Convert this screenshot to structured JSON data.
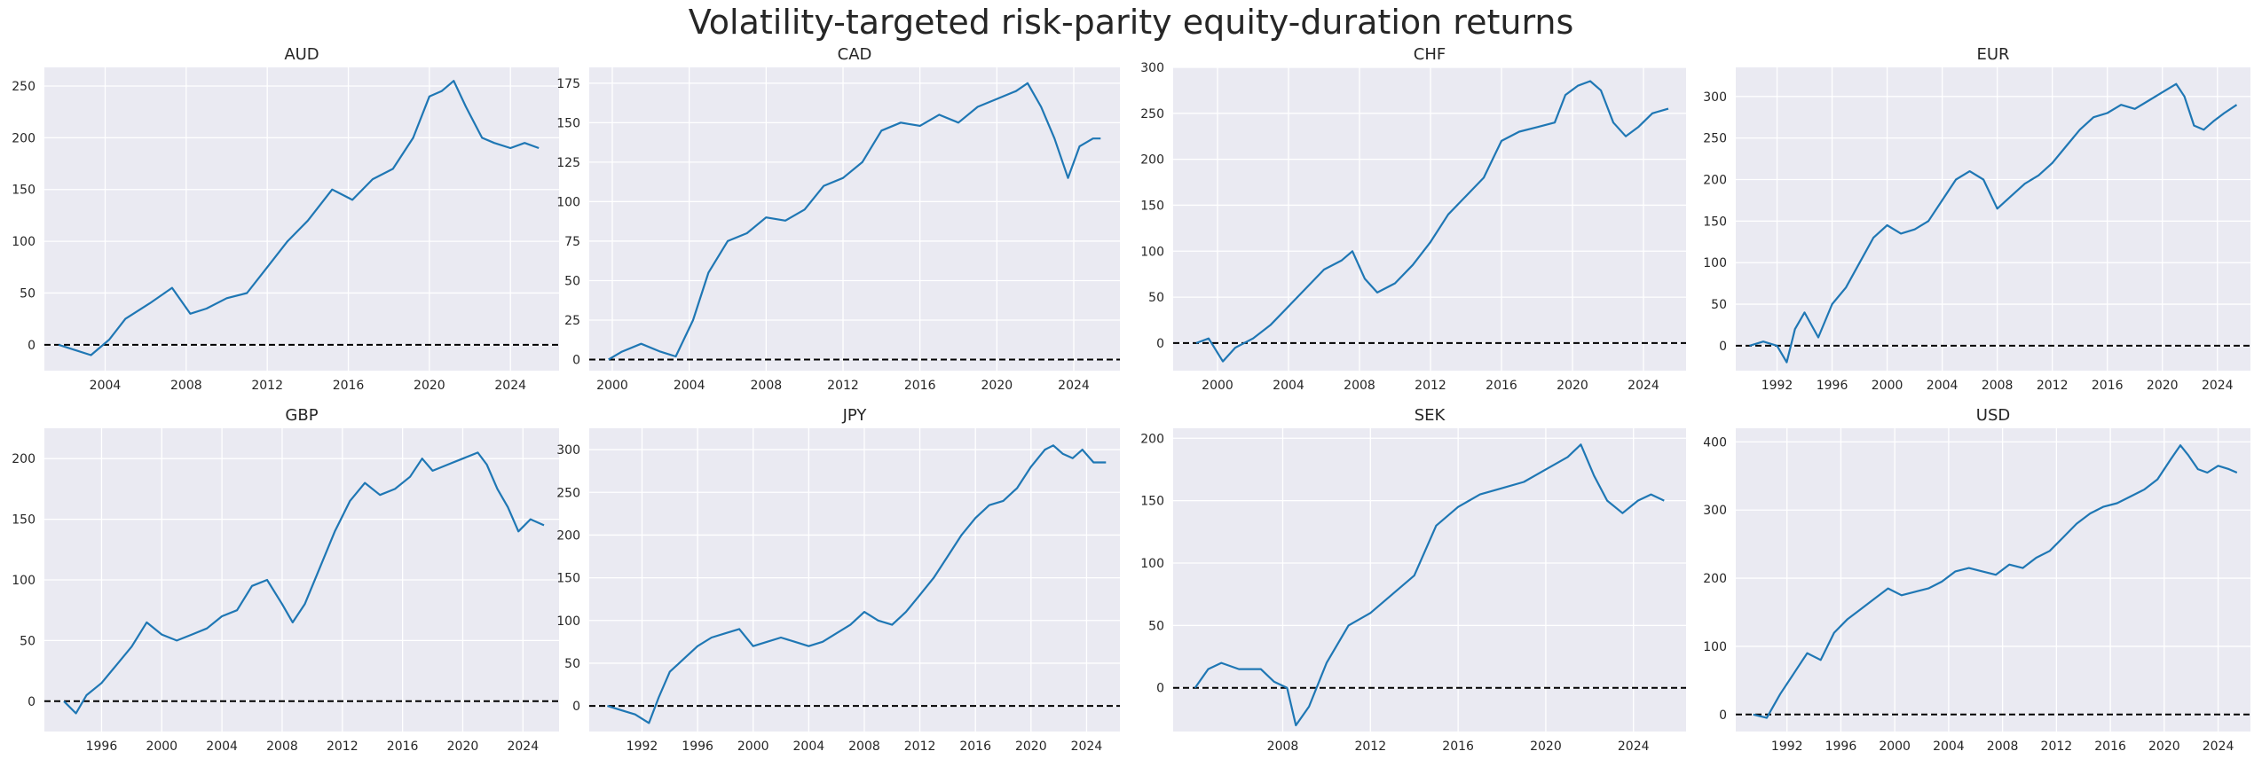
{
  "figure": {
    "title": "Volatility-targeted risk-parity equity-duration returns"
  },
  "style": {
    "background": "#eaeaf2",
    "grid": "#ffffff",
    "line": "#1f77b4",
    "zero_line": "#000000"
  },
  "chart_data": [
    {
      "type": "line",
      "title": "AUD",
      "xlim": [
        2001.0,
        2026.4
      ],
      "ylim": [
        -25,
        268
      ],
      "xticks": [
        2004,
        2008,
        2012,
        2016,
        2020,
        2024
      ],
      "yticks": [
        0,
        50,
        100,
        150,
        200,
        250
      ],
      "reference_line": 0,
      "series": [
        {
          "x": [
            2001.7,
            2002.5,
            2003.3,
            2004.2,
            2005.0,
            2006.2,
            2007.3,
            2008.2,
            2009.0,
            2010.0,
            2011.0,
            2012.0,
            2013.0,
            2014.0,
            2015.2,
            2016.2,
            2017.2,
            2018.2,
            2019.2,
            2020.0,
            2020.6,
            2021.2,
            2021.8,
            2022.6,
            2023.2,
            2024.0,
            2024.7,
            2025.4
          ],
          "y": [
            0,
            -5,
            -10,
            5,
            25,
            40,
            55,
            30,
            35,
            45,
            50,
            75,
            100,
            120,
            150,
            140,
            160,
            170,
            200,
            240,
            245,
            255,
            230,
            200,
            195,
            190,
            195,
            190
          ]
        }
      ]
    },
    {
      "type": "line",
      "title": "CAD",
      "xlim": [
        1998.8,
        2026.4
      ],
      "ylim": [
        -7,
        185
      ],
      "xticks": [
        2000,
        2004,
        2008,
        2012,
        2016,
        2020,
        2024
      ],
      "yticks": [
        0,
        25,
        50,
        75,
        100,
        125,
        150,
        175
      ],
      "reference_line": 0,
      "series": [
        {
          "x": [
            1999.8,
            2000.5,
            2001.5,
            2002.5,
            2003.3,
            2004.2,
            2005.0,
            2006.0,
            2007.0,
            2008.0,
            2009.0,
            2010.0,
            2011.0,
            2012.0,
            2013.0,
            2014.0,
            2015.0,
            2016.0,
            2017.0,
            2018.0,
            2019.0,
            2020.0,
            2021.0,
            2021.6,
            2022.3,
            2023.0,
            2023.7,
            2024.3,
            2025.0,
            2025.4
          ],
          "y": [
            0,
            5,
            10,
            5,
            2,
            25,
            55,
            75,
            80,
            90,
            88,
            95,
            110,
            115,
            125,
            145,
            150,
            148,
            155,
            150,
            160,
            165,
            170,
            175,
            160,
            140,
            115,
            135,
            140,
            140
          ]
        }
      ]
    },
    {
      "type": "line",
      "title": "CHF",
      "xlim": [
        1997.5,
        2026.4
      ],
      "ylim": [
        -30,
        300
      ],
      "xticks": [
        2000,
        2004,
        2008,
        2012,
        2016,
        2020,
        2024
      ],
      "yticks": [
        0,
        50,
        100,
        150,
        200,
        250,
        300
      ],
      "reference_line": 0,
      "series": [
        {
          "x": [
            1998.8,
            1999.5,
            2000.3,
            2001.0,
            2002.0,
            2003.0,
            2004.0,
            2005.0,
            2006.0,
            2007.0,
            2007.6,
            2008.3,
            2009.0,
            2010.0,
            2011.0,
            2012.0,
            2013.0,
            2014.0,
            2015.0,
            2016.0,
            2017.0,
            2018.0,
            2019.0,
            2019.6,
            2020.3,
            2021.0,
            2021.6,
            2022.3,
            2023.0,
            2023.7,
            2024.5,
            2025.4
          ],
          "y": [
            0,
            5,
            -20,
            -5,
            5,
            20,
            40,
            60,
            80,
            90,
            100,
            70,
            55,
            65,
            85,
            110,
            140,
            160,
            180,
            220,
            230,
            235,
            240,
            270,
            280,
            285,
            275,
            240,
            225,
            235,
            250,
            255
          ]
        }
      ]
    },
    {
      "type": "line",
      "title": "EUR",
      "xlim": [
        1989.0,
        2026.4
      ],
      "ylim": [
        -30,
        335
      ],
      "xticks": [
        1992,
        1996,
        2000,
        2004,
        2008,
        2012,
        2016,
        2020,
        2024
      ],
      "yticks": [
        0,
        50,
        100,
        150,
        200,
        250,
        300
      ],
      "reference_line": 0,
      "series": [
        {
          "x": [
            1990.0,
            1991.0,
            1992.0,
            1992.7,
            1993.3,
            1994.0,
            1995.0,
            1996.0,
            1997.0,
            1998.0,
            1999.0,
            2000.0,
            2001.0,
            2002.0,
            2003.0,
            2004.0,
            2005.0,
            2006.0,
            2007.0,
            2008.0,
            2009.0,
            2010.0,
            2011.0,
            2012.0,
            2013.0,
            2014.0,
            2015.0,
            2016.0,
            2017.0,
            2018.0,
            2019.0,
            2020.0,
            2021.0,
            2021.6,
            2022.3,
            2023.0,
            2023.7,
            2024.5,
            2025.4
          ],
          "y": [
            0,
            5,
            0,
            -20,
            20,
            40,
            10,
            50,
            70,
            100,
            130,
            145,
            135,
            140,
            150,
            175,
            200,
            210,
            200,
            165,
            180,
            195,
            205,
            220,
            240,
            260,
            275,
            280,
            290,
            285,
            295,
            305,
            315,
            300,
            265,
            260,
            270,
            280,
            290
          ]
        }
      ]
    },
    {
      "type": "line",
      "title": "GBP",
      "xlim": [
        1992.2,
        2026.4
      ],
      "ylim": [
        -25,
        225
      ],
      "xticks": [
        1996,
        2000,
        2004,
        2008,
        2012,
        2016,
        2020,
        2024
      ],
      "yticks": [
        0,
        50,
        100,
        150,
        200
      ],
      "reference_line": 0,
      "series": [
        {
          "x": [
            1993.5,
            1994.3,
            1995.0,
            1996.0,
            1997.0,
            1998.0,
            1999.0,
            2000.0,
            2001.0,
            2002.0,
            2003.0,
            2004.0,
            2005.0,
            2006.0,
            2007.0,
            2008.0,
            2008.7,
            2009.5,
            2010.5,
            2011.5,
            2012.5,
            2013.5,
            2014.5,
            2015.5,
            2016.5,
            2017.3,
            2018.0,
            2019.0,
            2020.0,
            2021.0,
            2021.6,
            2022.3,
            2023.0,
            2023.7,
            2024.5,
            2025.4
          ],
          "y": [
            0,
            -10,
            5,
            15,
            30,
            45,
            65,
            55,
            50,
            55,
            60,
            70,
            75,
            95,
            100,
            80,
            65,
            80,
            110,
            140,
            165,
            180,
            170,
            175,
            185,
            200,
            190,
            195,
            200,
            205,
            195,
            175,
            160,
            140,
            150,
            145
          ]
        }
      ]
    },
    {
      "type": "line",
      "title": "JPY",
      "xlim": [
        1988.2,
        2026.4
      ],
      "ylim": [
        -30,
        325
      ],
      "xticks": [
        1992,
        1996,
        2000,
        2004,
        2008,
        2012,
        2016,
        2020,
        2024
      ],
      "yticks": [
        0,
        50,
        100,
        150,
        200,
        250,
        300
      ],
      "reference_line": 0,
      "series": [
        {
          "x": [
            1989.5,
            1990.5,
            1991.5,
            1992.5,
            1993.2,
            1994.0,
            1995.0,
            1996.0,
            1997.0,
            1998.0,
            1999.0,
            2000.0,
            2001.0,
            2002.0,
            2003.0,
            2004.0,
            2005.0,
            2006.0,
            2007.0,
            2008.0,
            2009.0,
            2010.0,
            2011.0,
            2012.0,
            2013.0,
            2014.0,
            2015.0,
            2016.0,
            2017.0,
            2018.0,
            2019.0,
            2020.0,
            2021.0,
            2021.6,
            2022.3,
            2023.0,
            2023.7,
            2024.5,
            2025.4
          ],
          "y": [
            0,
            -5,
            -10,
            -20,
            10,
            40,
            55,
            70,
            80,
            85,
            90,
            70,
            75,
            80,
            75,
            70,
            75,
            85,
            95,
            110,
            100,
            95,
            110,
            130,
            150,
            175,
            200,
            220,
            235,
            240,
            255,
            280,
            300,
            305,
            295,
            290,
            300,
            285,
            285
          ]
        }
      ]
    },
    {
      "type": "line",
      "title": "SEK",
      "xlim": [
        2003.0,
        2026.4
      ],
      "ylim": [
        -35,
        208
      ],
      "xticks": [
        2008,
        2012,
        2016,
        2020,
        2024
      ],
      "yticks": [
        0,
        50,
        100,
        150,
        200
      ],
      "reference_line": 0,
      "series": [
        {
          "x": [
            2004.0,
            2004.6,
            2005.2,
            2006.0,
            2007.0,
            2007.6,
            2008.2,
            2008.6,
            2009.2,
            2010.0,
            2011.0,
            2012.0,
            2013.0,
            2014.0,
            2015.0,
            2016.0,
            2017.0,
            2018.0,
            2019.0,
            2020.0,
            2021.0,
            2021.6,
            2022.2,
            2022.8,
            2023.5,
            2024.2,
            2024.8,
            2025.4
          ],
          "y": [
            0,
            15,
            20,
            15,
            15,
            5,
            0,
            -30,
            -15,
            20,
            50,
            60,
            75,
            90,
            130,
            145,
            155,
            160,
            165,
            175,
            185,
            195,
            170,
            150,
            140,
            150,
            155,
            150
          ]
        }
      ]
    },
    {
      "type": "line",
      "title": "USD",
      "xlim": [
        1988.2,
        2026.4
      ],
      "ylim": [
        -25,
        420
      ],
      "xticks": [
        1992,
        1996,
        2000,
        2004,
        2008,
        2012,
        2016,
        2020,
        2024
      ],
      "yticks": [
        0,
        100,
        200,
        300,
        400
      ],
      "reference_line": 0,
      "series": [
        {
          "x": [
            1989.5,
            1990.5,
            1991.5,
            1992.5,
            1993.5,
            1994.5,
            1995.5,
            1996.5,
            1997.5,
            1998.5,
            1999.5,
            2000.5,
            2001.5,
            2002.5,
            2003.5,
            2004.5,
            2005.5,
            2006.5,
            2007.5,
            2008.5,
            2009.5,
            2010.5,
            2011.5,
            2012.5,
            2013.5,
            2014.5,
            2015.5,
            2016.5,
            2017.5,
            2018.5,
            2019.5,
            2020.5,
            2021.2,
            2021.8,
            2022.5,
            2023.2,
            2024.0,
            2024.8,
            2025.4
          ],
          "y": [
            0,
            -5,
            30,
            60,
            90,
            80,
            120,
            140,
            155,
            170,
            185,
            175,
            180,
            185,
            195,
            210,
            215,
            210,
            205,
            220,
            215,
            230,
            240,
            260,
            280,
            295,
            305,
            310,
            320,
            330,
            345,
            375,
            395,
            380,
            360,
            355,
            365,
            360,
            355
          ]
        }
      ]
    }
  ]
}
